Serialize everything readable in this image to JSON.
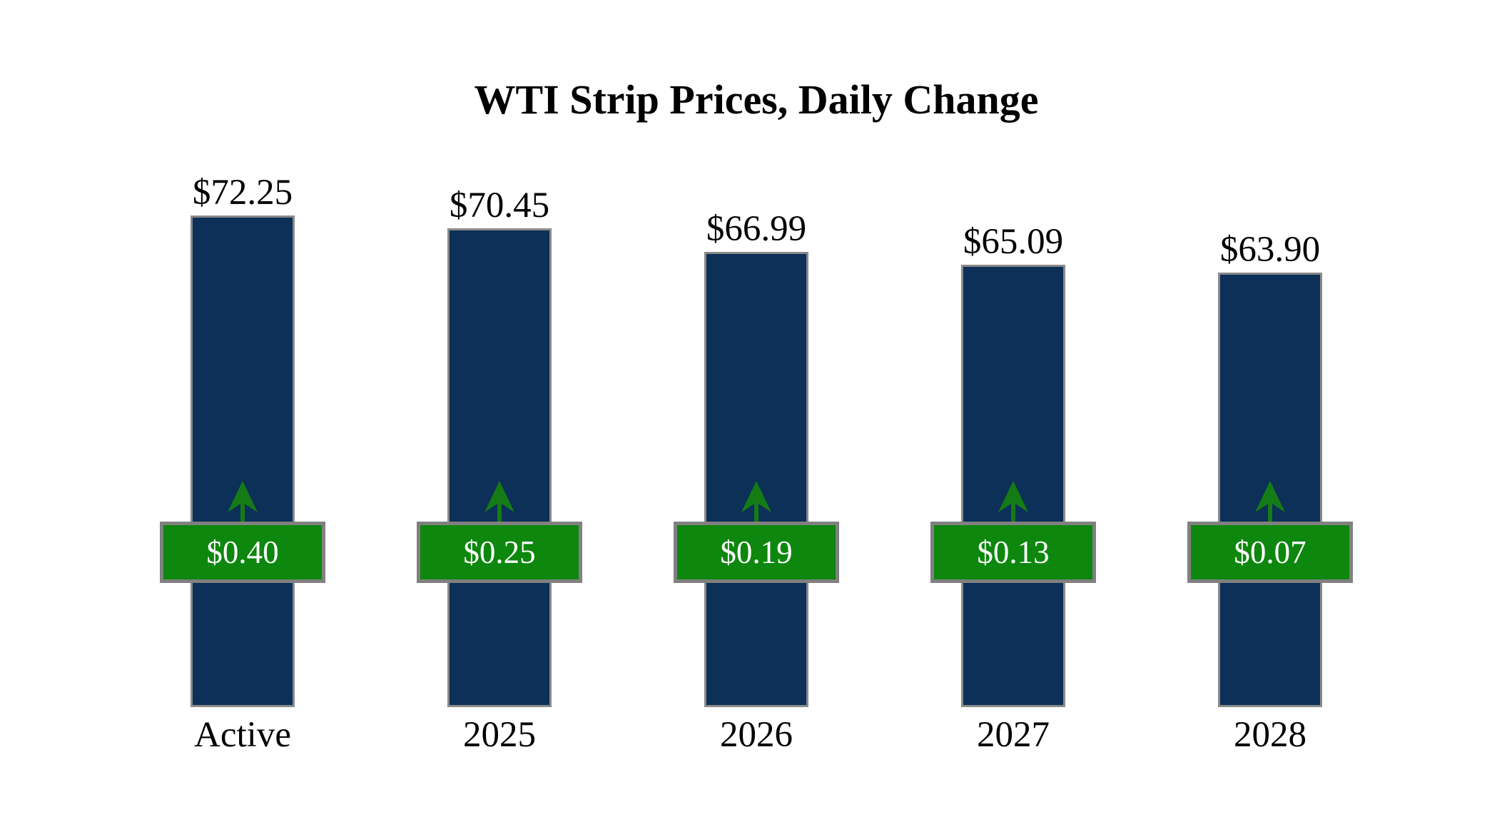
{
  "title": "WTI Strip Prices, Daily Change",
  "chart_data": {
    "type": "bar",
    "title": "WTI Strip Prices, Daily Change",
    "categories": [
      "Active",
      "2025",
      "2026",
      "2027",
      "2028"
    ],
    "series": [
      {
        "name": "strip_price",
        "role": "bar-height-and-top-label",
        "values": [
          72.25,
          70.45,
          66.99,
          65.09,
          63.9
        ],
        "labels": [
          "$72.25",
          "$70.45",
          "$66.99",
          "$65.09",
          "$63.90"
        ]
      },
      {
        "name": "daily_change",
        "role": "badge-with-up-arrow",
        "direction": "up",
        "values": [
          0.4,
          0.25,
          0.19,
          0.13,
          0.07
        ],
        "labels": [
          "$0.40",
          "$0.25",
          "$0.19",
          "$0.13",
          "$0.07"
        ]
      }
    ],
    "ylim": [
      0,
      75
    ],
    "grid": false,
    "legend": "none",
    "axes_shown": false
  },
  "colors": {
    "background": "#ffffff",
    "text": "#000000",
    "bar_fill": "#0c3057",
    "bar_border": "#8a8a8a",
    "badge_fill": "#0d870d",
    "badge_border": "#808080",
    "badge_text": "#ffffff",
    "arrow": "#157c15"
  }
}
